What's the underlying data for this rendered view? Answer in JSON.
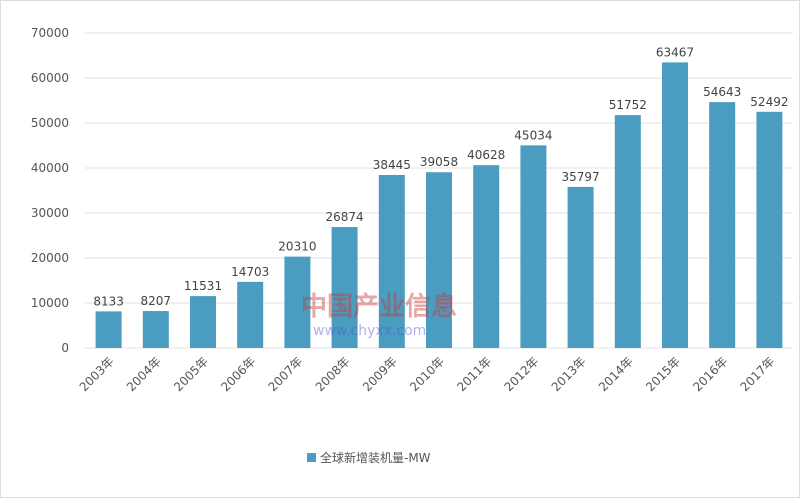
{
  "chart_data": {
    "type": "bar",
    "categories": [
      "2003年",
      "2004年",
      "2005年",
      "2006年",
      "2007年",
      "2008年",
      "2009年",
      "2010年",
      "2011年",
      "2012年",
      "2013年",
      "2014年",
      "2015年",
      "2016年",
      "2017年"
    ],
    "series": [
      {
        "name": "全球新增装机量-MW",
        "values": [
          8133,
          8207,
          11531,
          14703,
          20310,
          26874,
          38445,
          39058,
          40628,
          45034,
          35797,
          51752,
          63467,
          54643,
          52492
        ]
      }
    ],
    "ylim": [
      0,
      70000
    ],
    "yticks": [
      0,
      10000,
      20000,
      30000,
      40000,
      50000,
      60000,
      70000
    ],
    "grid": true,
    "legend": "bottom",
    "bar_color": "#4a9cc0"
  },
  "watermark": {
    "text": "中国产业信息",
    "url": "www.chyxx.com"
  }
}
